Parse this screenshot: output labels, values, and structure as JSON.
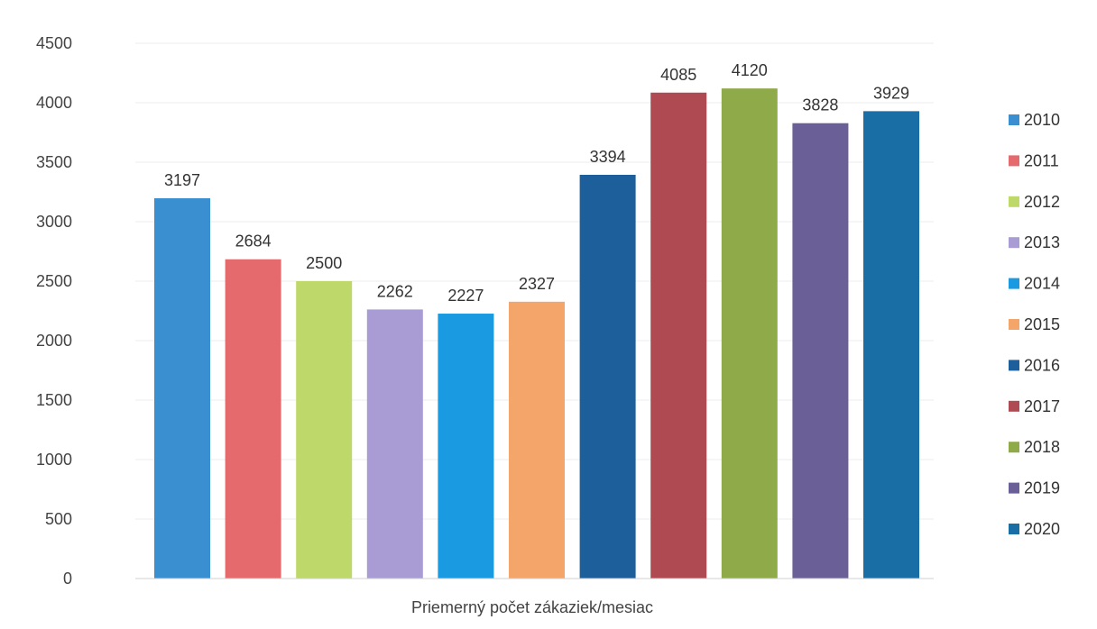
{
  "chart_data": {
    "type": "bar",
    "title": "",
    "xlabel": "Priemerný počet zákaziek/mesiac",
    "ylabel": "",
    "ylim": [
      0,
      4500
    ],
    "yticks": [
      0,
      500,
      1000,
      1500,
      2000,
      2500,
      3000,
      3500,
      4000,
      4500
    ],
    "grid": true,
    "legend_position": "right",
    "series": [
      {
        "name": "2010",
        "value": 3197,
        "color": "#3a8fd0"
      },
      {
        "name": "2011",
        "value": 2684,
        "color": "#e46a6e"
      },
      {
        "name": "2012",
        "value": 2500,
        "color": "#bfd86a"
      },
      {
        "name": "2013",
        "value": 2262,
        "color": "#a99bd3"
      },
      {
        "name": "2014",
        "value": 2227,
        "color": "#1a9ae0"
      },
      {
        "name": "2015",
        "value": 2327,
        "color": "#f4a56a"
      },
      {
        "name": "2016",
        "value": 3394,
        "color": "#1d5f9a"
      },
      {
        "name": "2017",
        "value": 4085,
        "color": "#b04a52"
      },
      {
        "name": "2018",
        "value": 4120,
        "color": "#8faa48"
      },
      {
        "name": "2019",
        "value": 3828,
        "color": "#6a5f96"
      },
      {
        "name": "2020",
        "value": 3929,
        "color": "#1a6ea6"
      }
    ]
  }
}
